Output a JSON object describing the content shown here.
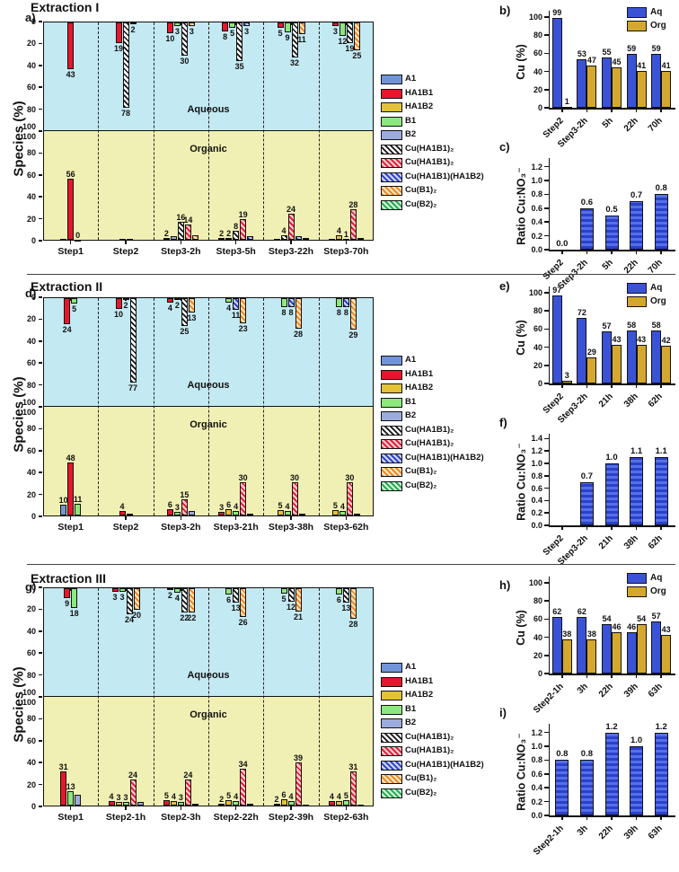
{
  "labels": {
    "species_ylabel": "Species (%)",
    "cu_ylabel": "Cu (%)",
    "ratio_ylabel": "Ratio Cu:NO₃⁻",
    "aqueous": "Aqueous",
    "organic": "Organic"
  },
  "sections": [
    {
      "title": "Extraction I",
      "species_letter": "a)",
      "cu_letter": "b)",
      "ratio_letter": "c)"
    },
    {
      "title": "Extraction II",
      "species_letter": "d)",
      "cu_letter": "e)",
      "ratio_letter": "f)"
    },
    {
      "title": "Extraction III",
      "species_letter": "g)",
      "cu_letter": "h)",
      "ratio_letter": "i)"
    }
  ],
  "species_legend": [
    {
      "key": "A1",
      "label": "A1"
    },
    {
      "key": "HA1B1",
      "label": "HA1B1"
    },
    {
      "key": "HA1B2",
      "label": "HA1B2"
    },
    {
      "key": "B1",
      "label": "B1"
    },
    {
      "key": "B2",
      "label": "B2"
    },
    {
      "key": "CuHA1B1_2k",
      "label": "Cu(HA1B1)₂"
    },
    {
      "key": "CuHA1B1_2r",
      "label": "Cu(HA1B1)₂"
    },
    {
      "key": "CuHA1B1HA1B2",
      "label": "Cu(HA1B1)(HA1B2)"
    },
    {
      "key": "CuB1_2",
      "label": "Cu(B1)₂"
    },
    {
      "key": "CuB2_2",
      "label": "Cu(B2)₂"
    }
  ],
  "colors": {
    "aqueous_bg": "#c3e9f2",
    "organic_bg": "#f0f0b4",
    "aq_bar": "#3a53d6",
    "org_bar": "#d4a82e",
    "ratio_bar_dark": "#2b41c8",
    "ratio_bar_light": "#5570e8",
    "species": {
      "A1": "#7094d8",
      "HA1B1": "#e8152c",
      "HA1B2": "#e4c238",
      "B1": "#8ce87c",
      "B2": "#9cabde"
    },
    "hatches": {
      "CuHA1B1_2k": [
        "#ffffff",
        "#111111"
      ],
      "CuHA1B1_2r": [
        "#ffc4c4",
        "#dd1030"
      ],
      "CuHA1B1HA1B2": [
        "#c4cdf2",
        "#2336c4"
      ],
      "CuB1_2": [
        "#ffe2b8",
        "#ef7d16"
      ],
      "CuB2_2": [
        "#c9f2cc",
        "#17a24b"
      ]
    }
  },
  "chart_data": [
    {
      "id": "a",
      "type": "bar",
      "variant": "species_mirror",
      "title": "Extraction I",
      "ylabel": "Species (%)",
      "ylim": [
        0,
        100
      ],
      "yticks": [
        0,
        20,
        40,
        60,
        80,
        100
      ],
      "region_labels": [
        "Aqueous",
        "Organic"
      ],
      "categories": [
        "Step1",
        "Step2",
        "Step3-2h",
        "Step3-5h",
        "Step3-22h",
        "Step3-70h"
      ],
      "aqueous": [
        [
          {
            "s": "HA1B1",
            "v": 43
          }
        ],
        [
          {
            "s": "HA1B1",
            "v": 19
          },
          {
            "s": "CuHA1B1_2k",
            "v": 78
          },
          {
            "s": "CuHA1B1HA1B2",
            "v": 2
          }
        ],
        [
          {
            "s": "HA1B1",
            "v": 10
          },
          {
            "s": "B1",
            "v": 3
          },
          {
            "s": "CuHA1B1_2k",
            "v": 30
          },
          {
            "s": "CuB1_2",
            "v": 3
          }
        ],
        [
          {
            "s": "HA1B1",
            "v": 8
          },
          {
            "s": "B1",
            "v": 5
          },
          {
            "s": "CuHA1B1_2k",
            "v": 35
          },
          {
            "s": "CuHA1B1HA1B2",
            "v": 3
          }
        ],
        [
          {
            "s": "HA1B1",
            "v": 5
          },
          {
            "s": "B1",
            "v": 9
          },
          {
            "s": "CuHA1B1_2k",
            "v": 32
          },
          {
            "s": "CuB1_2",
            "v": 11
          }
        ],
        [
          {
            "s": "HA1B1",
            "v": 3
          },
          {
            "s": "B1",
            "v": 12
          },
          {
            "s": "CuHA1B1_2k",
            "v": 19
          },
          {
            "s": "CuB1_2",
            "v": 25
          }
        ]
      ],
      "organic": [
        [
          {
            "s": "A1",
            "v": 1,
            "nl": true
          },
          {
            "s": "HA1B1",
            "v": 56
          },
          {
            "s": "B1",
            "v": 0
          }
        ],
        [
          {
            "s": "HA1B1",
            "v": 1,
            "nl": true
          },
          {
            "s": "B2",
            "v": 1,
            "nl": true
          }
        ],
        [
          {
            "s": "HA1B1",
            "v": 2
          },
          {
            "s": "B2",
            "v": 3,
            "nl": true
          },
          {
            "s": "CuHA1B1_2k",
            "v": 16
          },
          {
            "s": "CuHA1B1_2r",
            "v": 14
          },
          {
            "s": "CuB1_2",
            "v": 4,
            "nl": true
          }
        ],
        [
          {
            "s": "HA1B1",
            "v": 2
          },
          {
            "s": "HA1B2",
            "v": 2
          },
          {
            "s": "CuHA1B1_2k",
            "v": 8
          },
          {
            "s": "CuHA1B1_2r",
            "v": 19
          },
          {
            "s": "CuHA1B1HA1B2",
            "v": 3,
            "nl": true
          }
        ],
        [
          {
            "s": "A1",
            "v": 1,
            "nl": true
          },
          {
            "s": "CuHA1B1_2k",
            "v": 4
          },
          {
            "s": "CuHA1B1_2r",
            "v": 24
          },
          {
            "s": "CuHA1B1HA1B2",
            "v": 3,
            "nl": true
          },
          {
            "s": "CuB2_2",
            "v": 2,
            "nl": true
          }
        ],
        [
          {
            "s": "A1",
            "v": 1,
            "nl": true
          },
          {
            "s": "HA1B2",
            "v": 4
          },
          {
            "s": "B1",
            "v": 1
          },
          {
            "s": "CuHA1B1_2r",
            "v": 28
          },
          {
            "s": "CuHA1B1HA1B2",
            "v": 2,
            "nl": true
          }
        ]
      ]
    },
    {
      "id": "b",
      "type": "bar",
      "variant": "grouped",
      "ylabel": "Cu (%)",
      "ylim": [
        0,
        105
      ],
      "yticks": [
        0,
        20,
        40,
        60,
        80,
        100
      ],
      "legend": [
        "Aq",
        "Org"
      ],
      "categories": [
        "Step2",
        "Step3-2h",
        "5h",
        "22h",
        "70h"
      ],
      "series": [
        {
          "name": "Aq",
          "values": [
            99,
            53,
            55,
            59,
            59
          ]
        },
        {
          "name": "Org",
          "values": [
            1,
            47,
            45,
            41,
            41
          ]
        }
      ]
    },
    {
      "id": "c",
      "type": "bar",
      "variant": "single",
      "ylabel": "Ratio Cu:NO₃⁻",
      "ymax": 1.3,
      "yticks": [
        "0.0",
        "0.2",
        "0.4",
        "0.6",
        "0.8",
        "1.0",
        "1.2"
      ],
      "categories": [
        "Step2",
        "Step3-2h",
        "5h",
        "22h",
        "70h"
      ],
      "values": [
        0,
        0.6,
        0.5,
        0.7,
        0.8
      ],
      "labels": [
        "0.0",
        "0.6",
        "0.5",
        "0.7",
        "0.8"
      ]
    },
    {
      "id": "d",
      "type": "bar",
      "variant": "species_mirror",
      "title": "Extraction II",
      "ylabel": "Species (%)",
      "ylim": [
        0,
        100
      ],
      "yticks": [
        0,
        20,
        40,
        60,
        80,
        100
      ],
      "region_labels": [
        "Aqueous",
        "Organic"
      ],
      "categories": [
        "Step1",
        "Step2",
        "Step3-2h",
        "Step3-21h",
        "Step3-38h",
        "Step3-62h"
      ],
      "aqueous": [
        [
          {
            "s": "HA1B1",
            "v": 24
          },
          {
            "s": "B1",
            "v": 5
          }
        ],
        [
          {
            "s": "HA1B1",
            "v": 10
          },
          {
            "s": "B1",
            "v": 2
          },
          {
            "s": "CuHA1B1_2k",
            "v": 77
          }
        ],
        [
          {
            "s": "HA1B1",
            "v": 4
          },
          {
            "s": "B1",
            "v": 2
          },
          {
            "s": "CuHA1B1_2k",
            "v": 25
          },
          {
            "s": "CuB1_2",
            "v": 13
          }
        ],
        [
          {
            "s": "B1",
            "v": 4
          },
          {
            "s": "CuHA1B1HA1B2",
            "v": 11
          },
          {
            "s": "CuB1_2",
            "v": 23
          }
        ],
        [
          {
            "s": "B1",
            "v": 8
          },
          {
            "s": "CuHA1B1HA1B2",
            "v": 8
          },
          {
            "s": "CuB1_2",
            "v": 28
          }
        ],
        [
          {
            "s": "B1",
            "v": 8
          },
          {
            "s": "CuHA1B1HA1B2",
            "v": 8
          },
          {
            "s": "CuB1_2",
            "v": 29
          }
        ]
      ],
      "organic": [
        [
          {
            "s": "A1",
            "v": 10
          },
          {
            "s": "HA1B1",
            "v": 48
          },
          {
            "s": "B1",
            "v": 11
          }
        ],
        [
          {
            "s": "HA1B1",
            "v": 4
          },
          {
            "s": "B2",
            "v": 2,
            "nl": true
          }
        ],
        [
          {
            "s": "HA1B1",
            "v": 6
          },
          {
            "s": "B1",
            "v": 3
          },
          {
            "s": "CuHA1B1_2r",
            "v": 15
          },
          {
            "s": "B2",
            "v": 4,
            "nl": true
          }
        ],
        [
          {
            "s": "HA1B1",
            "v": 3
          },
          {
            "s": "HA1B2",
            "v": 6
          },
          {
            "s": "B1",
            "v": 4
          },
          {
            "s": "CuHA1B1_2r",
            "v": 30
          },
          {
            "s": "B2",
            "v": 2,
            "nl": true
          }
        ],
        [
          {
            "s": "HA1B2",
            "v": 5
          },
          {
            "s": "B1",
            "v": 4
          },
          {
            "s": "CuHA1B1_2r",
            "v": 30
          },
          {
            "s": "B2",
            "v": 2,
            "nl": true
          }
        ],
        [
          {
            "s": "HA1B2",
            "v": 5
          },
          {
            "s": "B1",
            "v": 4
          },
          {
            "s": "CuHA1B1_2r",
            "v": 30
          },
          {
            "s": "B2",
            "v": 2,
            "nl": true
          }
        ]
      ]
    },
    {
      "id": "e",
      "type": "bar",
      "variant": "grouped",
      "ylabel": "Cu (%)",
      "ylim": [
        0,
        105
      ],
      "yticks": [
        0,
        20,
        40,
        60,
        80,
        100
      ],
      "legend": [
        "Aq",
        "Org"
      ],
      "categories": [
        "Step2",
        "Step3-2h",
        "21h",
        "38h",
        "62h"
      ],
      "series": [
        {
          "name": "Aq",
          "values": [
            97,
            72,
            57,
            58,
            58
          ]
        },
        {
          "name": "Org",
          "values": [
            3,
            29,
            43,
            43,
            42
          ]
        }
      ]
    },
    {
      "id": "f",
      "type": "bar",
      "variant": "single",
      "ylabel": "Ratio Cu:NO₃⁻",
      "ymax": 1.45,
      "yticks": [
        "0.0",
        "0.2",
        "0.4",
        "0.6",
        "0.8",
        "1.0",
        "1.2",
        "1.4"
      ],
      "categories": [
        "Step2",
        "Step3-2h",
        "21h",
        "38h",
        "62h"
      ],
      "values": [
        0,
        0.7,
        1.0,
        1.1,
        1.1
      ],
      "labels": [
        "",
        "0.7",
        "1.0",
        "1.1",
        "1.1"
      ]
    },
    {
      "id": "g",
      "type": "bar",
      "variant": "species_mirror",
      "title": "Extraction III",
      "ylabel": "Species (%)",
      "ylim": [
        0,
        100
      ],
      "yticks": [
        0,
        20,
        40,
        60,
        80,
        100
      ],
      "region_labels": [
        "Aqueous",
        "Organic"
      ],
      "categories": [
        "Step1",
        "Step2-1h",
        "Step2-3h",
        "Step2-22h",
        "Step2-39h",
        "Step2-63h"
      ],
      "aqueous": [
        [
          {
            "s": "HA1B1",
            "v": 9
          },
          {
            "s": "B1",
            "v": 18
          }
        ],
        [
          {
            "s": "HA1B1",
            "v": 3
          },
          {
            "s": "B1",
            "v": 3
          },
          {
            "s": "CuHA1B1_2k",
            "v": 24
          },
          {
            "s": "CuB1_2",
            "v": 20
          }
        ],
        [
          {
            "s": "HA1B1",
            "v": 2
          },
          {
            "s": "B1",
            "v": 4
          },
          {
            "s": "CuHA1B1_2k",
            "v": 22
          },
          {
            "s": "CuB1_2",
            "v": 22
          }
        ],
        [
          {
            "s": "B1",
            "v": 6
          },
          {
            "s": "CuHA1B1_2k",
            "v": 13
          },
          {
            "s": "CuB1_2",
            "v": 26
          }
        ],
        [
          {
            "s": "B1",
            "v": 5
          },
          {
            "s": "CuHA1B1_2k",
            "v": 12
          },
          {
            "s": "CuB1_2",
            "v": 21
          }
        ],
        [
          {
            "s": "B1",
            "v": 6
          },
          {
            "s": "CuHA1B1_2k",
            "v": 13
          },
          {
            "s": "CuB1_2",
            "v": 28
          }
        ]
      ],
      "organic": [
        [
          {
            "s": "HA1B1",
            "v": 31
          },
          {
            "s": "B1",
            "v": 13
          },
          {
            "s": "B2",
            "v": 10,
            "nl": true
          }
        ],
        [
          {
            "s": "HA1B1",
            "v": 4
          },
          {
            "s": "HA1B2",
            "v": 3
          },
          {
            "s": "B1",
            "v": 3
          },
          {
            "s": "CuHA1B1_2r",
            "v": 24
          },
          {
            "s": "B2",
            "v": 3,
            "nl": true
          }
        ],
        [
          {
            "s": "HA1B1",
            "v": 5
          },
          {
            "s": "HA1B2",
            "v": 4
          },
          {
            "s": "B1",
            "v": 3
          },
          {
            "s": "CuHA1B1_2r",
            "v": 24
          },
          {
            "s": "B2",
            "v": 2,
            "nl": true
          }
        ],
        [
          {
            "s": "HA1B1",
            "v": 2
          },
          {
            "s": "HA1B2",
            "v": 5
          },
          {
            "s": "B1",
            "v": 4
          },
          {
            "s": "CuHA1B1_2r",
            "v": 34
          },
          {
            "s": "B2",
            "v": 2,
            "nl": true
          }
        ],
        [
          {
            "s": "HA1B1",
            "v": 2
          },
          {
            "s": "HA1B2",
            "v": 6
          },
          {
            "s": "B1",
            "v": 4
          },
          {
            "s": "CuHA1B1_2r",
            "v": 39
          },
          {
            "s": "B2",
            "v": 1,
            "nl": true
          }
        ],
        [
          {
            "s": "HA1B1",
            "v": 4
          },
          {
            "s": "HA1B2",
            "v": 4
          },
          {
            "s": "B1",
            "v": 5
          },
          {
            "s": "CuHA1B1_2r",
            "v": 31
          },
          {
            "s": "B2",
            "v": 1,
            "nl": true
          }
        ]
      ]
    },
    {
      "id": "h",
      "type": "bar",
      "variant": "grouped",
      "ylabel": "Cu (%)",
      "ylim": [
        0,
        105
      ],
      "yticks": [
        0,
        20,
        40,
        60,
        80,
        100
      ],
      "legend": [
        "Aq",
        "Org"
      ],
      "categories": [
        "Step2-1h",
        "3h",
        "22h",
        "39h",
        "63h"
      ],
      "series": [
        {
          "name": "Aq",
          "values": [
            62,
            62,
            54,
            46,
            57
          ]
        },
        {
          "name": "Org",
          "values": [
            38,
            38,
            46,
            54,
            43
          ]
        }
      ]
    },
    {
      "id": "i",
      "type": "bar",
      "variant": "single",
      "ylabel": "Ratio Cu:NO₃⁻",
      "ymax": 1.3,
      "yticks": [
        "0.0",
        "0.2",
        "0.4",
        "0.6",
        "0.8",
        "1.0",
        "1.2"
      ],
      "categories": [
        "Step2-1h",
        "3h",
        "22h",
        "39h",
        "63h"
      ],
      "values": [
        0.8,
        0.8,
        1.2,
        1.0,
        1.2
      ],
      "labels": [
        "0.8",
        "0.8",
        "1.2",
        "1.0",
        "1.2"
      ]
    }
  ]
}
